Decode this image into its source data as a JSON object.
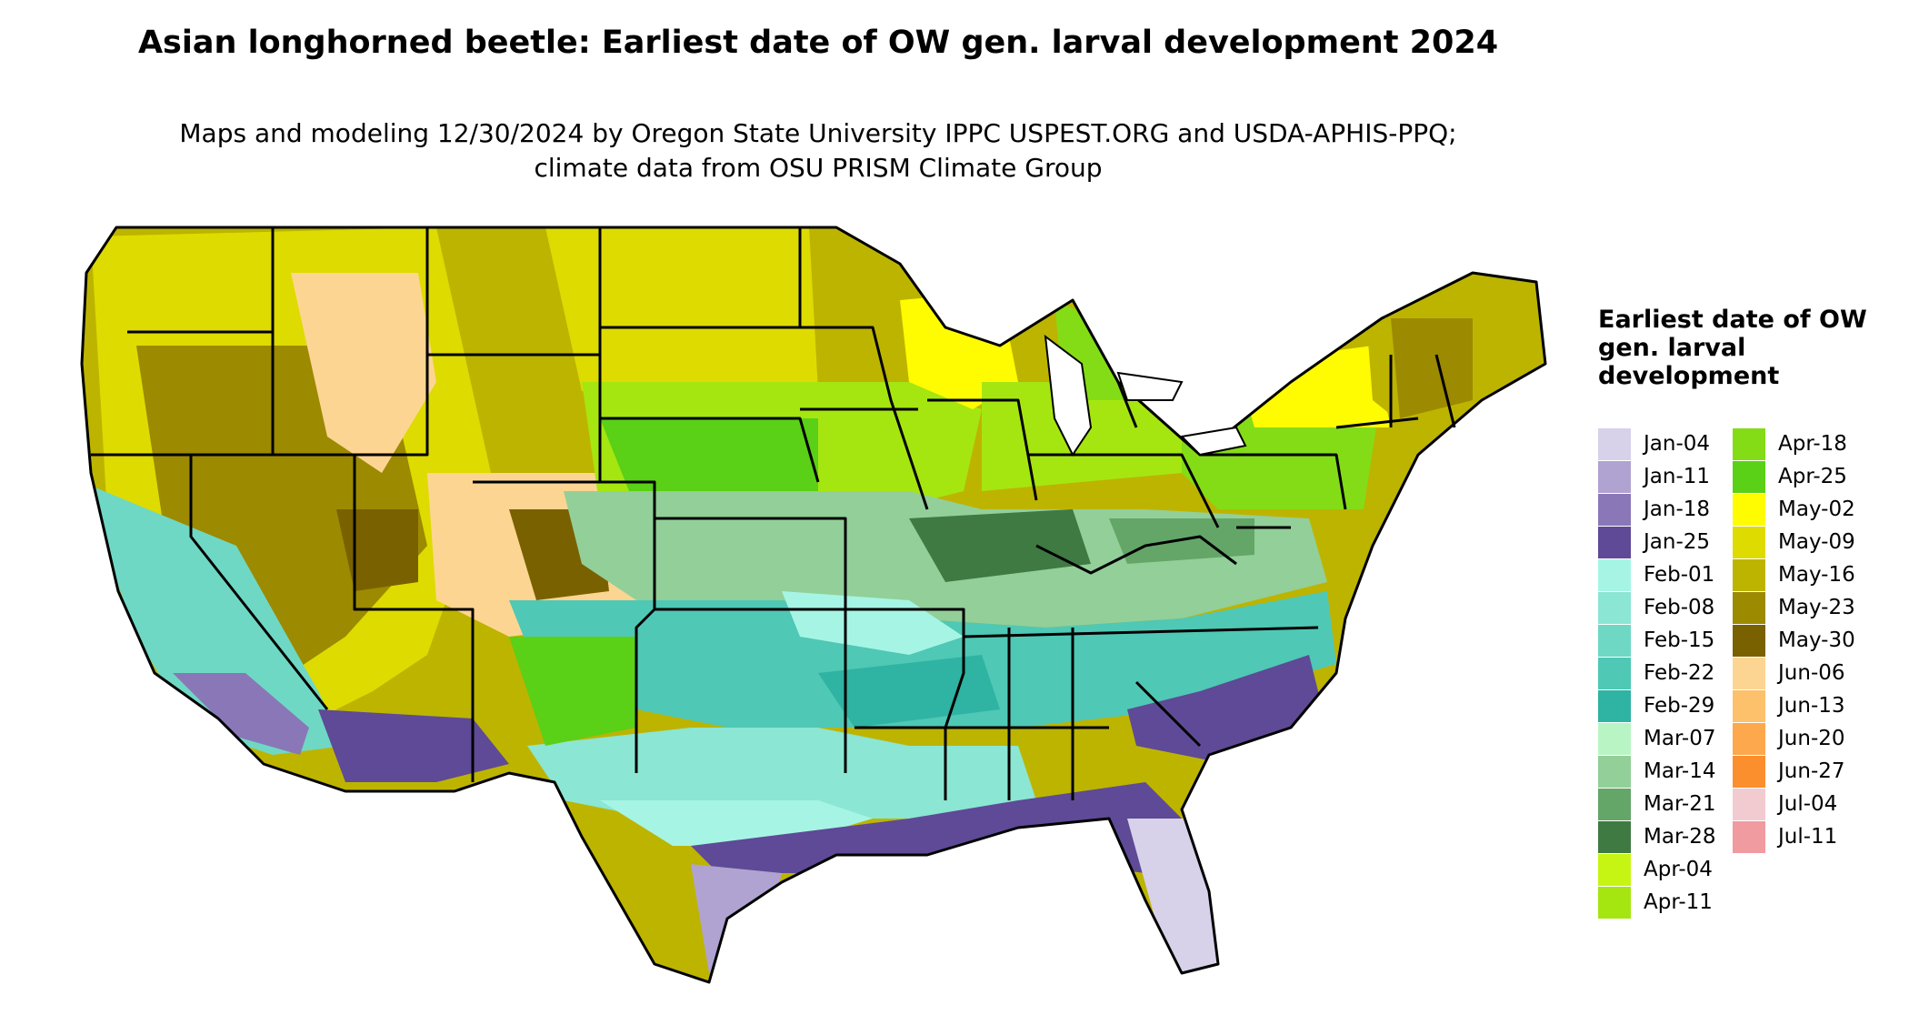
{
  "title": "Asian longhorned beetle: Earliest date of OW gen. larval development 2024",
  "subtitle": "Maps and modeling 12/30/2024 by Oregon State University IPPC USPEST.ORG and USDA-APHIS-PPQ; climate data from OSU PRISM Climate Group",
  "legend": {
    "title": "Earliest date of OW gen. larval development",
    "items": [
      {
        "label": "Jan-04",
        "color": "#d8d1ea"
      },
      {
        "label": "Jan-11",
        "color": "#b0a3d1"
      },
      {
        "label": "Jan-18",
        "color": "#8a77b8"
      },
      {
        "label": "Jan-25",
        "color": "#5e4a96"
      },
      {
        "label": "Feb-01",
        "color": "#a6f5e4"
      },
      {
        "label": "Feb-08",
        "color": "#8be6d3"
      },
      {
        "label": "Feb-15",
        "color": "#6fd8c4"
      },
      {
        "label": "Feb-22",
        "color": "#4fc8b5"
      },
      {
        "label": "Feb-29",
        "color": "#2fb3a3"
      },
      {
        "label": "Mar-07",
        "color": "#b9f5c4"
      },
      {
        "label": "Mar-14",
        "color": "#93cf99"
      },
      {
        "label": "Mar-21",
        "color": "#64a668"
      },
      {
        "label": "Mar-28",
        "color": "#3f7a43"
      },
      {
        "label": "Apr-04",
        "color": "#c6f514"
      },
      {
        "label": "Apr-11",
        "color": "#a6e610"
      },
      {
        "label": "Apr-18",
        "color": "#84dc17"
      },
      {
        "label": "Apr-25",
        "color": "#5ad016"
      },
      {
        "label": "May-02",
        "color": "#fffb00"
      },
      {
        "label": "May-09",
        "color": "#dedb00"
      },
      {
        "label": "May-16",
        "color": "#bdb400"
      },
      {
        "label": "May-23",
        "color": "#9c8a00"
      },
      {
        "label": "May-30",
        "color": "#7a6100"
      },
      {
        "label": "Jun-06",
        "color": "#fdd592"
      },
      {
        "label": "Jun-13",
        "color": "#fdc06b"
      },
      {
        "label": "Jun-20",
        "color": "#fda84d"
      },
      {
        "label": "Jun-27",
        "color": "#fb8f2d"
      },
      {
        "label": "Jul-04",
        "color": "#f2cbd0"
      },
      {
        "label": "Jul-11",
        "color": "#f09b9f"
      }
    ]
  }
}
